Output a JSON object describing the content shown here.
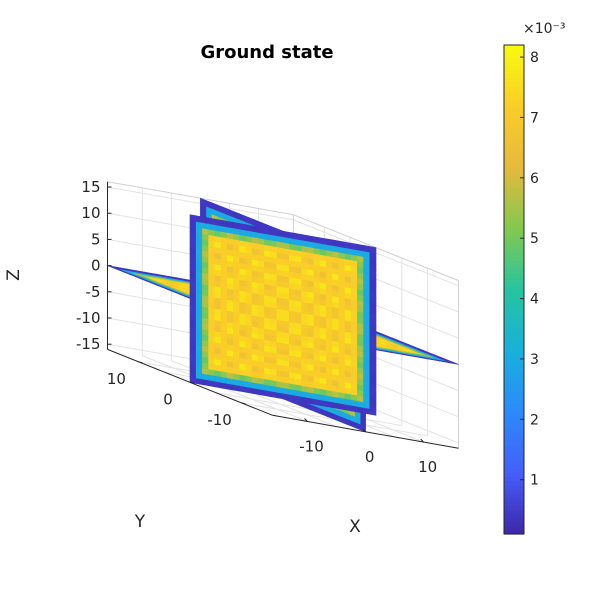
{
  "chart_data": {
    "type": "heatmap",
    "subtype": "3d-orthogonal-slices",
    "title": "Ground state",
    "xlabel": "X",
    "ylabel": "Y",
    "zlabel": "Z",
    "x_ticks": [
      "-10",
      "0",
      "10"
    ],
    "y_ticks": [
      "10",
      "0",
      "-10"
    ],
    "z_ticks": [
      "15",
      "10",
      "5",
      "0",
      "-5",
      "-10",
      "-15"
    ],
    "xlim": [
      -16,
      16
    ],
    "ylim": [
      -16,
      16
    ],
    "zlim": [
      -16,
      16
    ],
    "slices": [
      {
        "plane": "x",
        "at": 0
      },
      {
        "plane": "y",
        "at": 0
      },
      {
        "plane": "z",
        "at": 0
      }
    ],
    "colormap": "parula",
    "colorbar": {
      "ticks": [
        "1",
        "2",
        "3",
        "4",
        "5",
        "6",
        "7",
        "8"
      ],
      "exponent_label": "×10⁻³",
      "range": [
        0.0001,
        0.0082
      ]
    },
    "grid": true,
    "lattice_period": 4.5,
    "interior_value": 0.0072
  }
}
